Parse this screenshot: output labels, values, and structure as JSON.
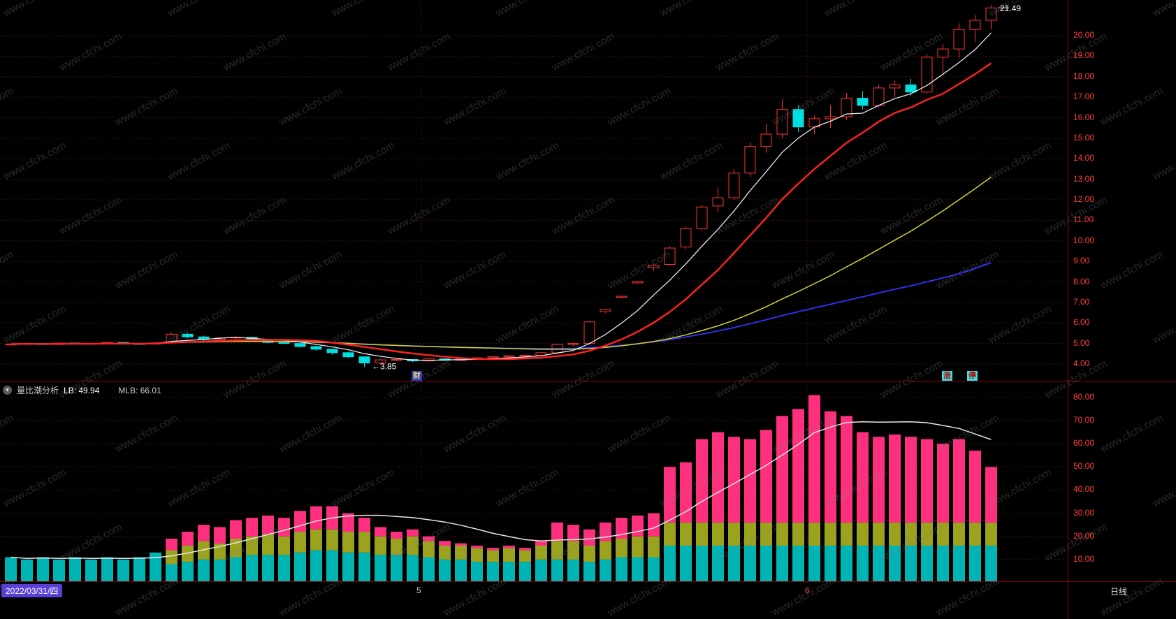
{
  "watermark": "www.cfchi.com",
  "colors": {
    "background": "#000000",
    "up": "#ff3434",
    "down": "#00e0e0",
    "grid": "#401010",
    "divider": "#8a0000",
    "axis_text": "#ff3b3b",
    "ma5": "#e8e8e8",
    "ma10": "#ff2222",
    "ma30": "#d4d431",
    "ma60": "#3333ff",
    "bar_cyan": "#00b4b4",
    "bar_olive": "#9aa21e",
    "bar_pink": "#ff2f7f",
    "line_white": "#e6e6e6",
    "badge_report_bg": "#2038d0",
    "badge_report_text": "#ffd24d",
    "badge_limit_bg": "#35e2e2",
    "badge_limit_text": "#cc0000",
    "date_box_bg": "#5a3fd6",
    "month_highlight": "#ff4545"
  },
  "annotations": {
    "high": "21.49",
    "low": "←3.85"
  },
  "badges": {
    "report": "财",
    "limit_up_1": "涨",
    "limit_up_2": "停"
  },
  "indicator": {
    "icon": "▾",
    "title": "量比潮分析",
    "lb": "LB: 49.94",
    "mlb": "MLB: 66.01"
  },
  "status_bar": {
    "date": "2022/03/31/四",
    "month_1": "5",
    "month_2": "6",
    "period": "日线"
  },
  "chart_data": [
    {
      "type": "candlestick",
      "title": "",
      "ylim": [
        3.7,
        21.6
      ],
      "y_ticks": [
        "20.00",
        "19.00",
        "18.00",
        "17.00",
        "16.00",
        "15.00",
        "14.00",
        "13.00",
        "12.00",
        "11.00",
        "10.00",
        "9.00",
        "8.00",
        "7.00",
        "6.00",
        "5.00",
        "4.00"
      ],
      "month_separator_indices": [
        26,
        50
      ],
      "high_annotation": {
        "index": 61,
        "price": 21.49
      },
      "low_annotation": {
        "index": 22,
        "price": 3.85
      },
      "ma_lines": [
        {
          "name": "MA60",
          "period": 60,
          "color": "#3333ff",
          "width": 1.8
        },
        {
          "name": "MA30",
          "period": 30,
          "color": "#d4d431",
          "width": 1.5
        },
        {
          "name": "MA5",
          "period": 5,
          "color": "#e8e8e8",
          "width": 1.3
        },
        {
          "name": "MA10",
          "period": 10,
          "color": "#ff2222",
          "width": 2.4
        }
      ],
      "candles": [
        [
          4.93,
          5.0,
          4.9,
          4.97
        ],
        [
          4.97,
          5.03,
          4.93,
          5.0
        ],
        [
          5.0,
          5.02,
          4.93,
          4.95
        ],
        [
          4.95,
          5.04,
          4.93,
          5.02
        ],
        [
          5.02,
          5.05,
          4.96,
          4.98
        ],
        [
          4.98,
          5.02,
          4.94,
          5.0
        ],
        [
          5.0,
          5.08,
          4.97,
          5.05
        ],
        [
          5.05,
          5.07,
          4.96,
          4.99
        ],
        [
          4.99,
          5.03,
          4.94,
          4.97
        ],
        [
          4.97,
          5.05,
          4.95,
          5.03
        ],
        [
          5.05,
          5.52,
          4.98,
          5.45
        ],
        [
          5.45,
          5.5,
          5.25,
          5.32
        ],
        [
          5.32,
          5.38,
          5.15,
          5.2
        ],
        [
          5.2,
          5.3,
          5.15,
          5.27
        ],
        [
          5.27,
          5.33,
          5.2,
          5.3
        ],
        [
          5.3,
          5.32,
          5.1,
          5.15
        ],
        [
          5.15,
          5.2,
          5.0,
          5.05
        ],
        [
          5.05,
          5.1,
          4.96,
          5.0
        ],
        [
          5.0,
          5.02,
          4.8,
          4.85
        ],
        [
          4.85,
          4.9,
          4.65,
          4.72
        ],
        [
          4.72,
          4.75,
          4.45,
          4.55
        ],
        [
          4.55,
          4.6,
          4.3,
          4.35
        ],
        [
          4.35,
          4.38,
          3.85,
          4.05
        ],
        [
          4.05,
          4.25,
          4.0,
          4.2
        ],
        [
          4.2,
          4.28,
          4.15,
          4.22
        ],
        [
          4.22,
          4.25,
          4.1,
          4.15
        ],
        [
          4.15,
          4.28,
          4.12,
          4.25
        ],
        [
          4.25,
          4.27,
          4.14,
          4.18
        ],
        [
          4.18,
          4.28,
          4.15,
          4.25
        ],
        [
          4.25,
          4.33,
          4.2,
          4.3
        ],
        [
          4.3,
          4.38,
          4.25,
          4.35
        ],
        [
          4.35,
          4.43,
          4.3,
          4.4
        ],
        [
          4.4,
          4.45,
          4.33,
          4.42
        ],
        [
          4.42,
          4.58,
          4.38,
          4.55
        ],
        [
          4.55,
          4.98,
          4.5,
          4.95
        ],
        [
          4.95,
          5.05,
          4.88,
          5.0
        ],
        [
          5.0,
          6.1,
          4.95,
          6.05
        ],
        [
          6.55,
          6.68,
          6.5,
          6.65
        ],
        [
          7.25,
          7.32,
          7.2,
          7.3
        ],
        [
          7.95,
          8.05,
          7.9,
          8.02
        ],
        [
          8.7,
          8.85,
          8.55,
          8.8
        ],
        [
          8.85,
          9.72,
          8.8,
          9.65
        ],
        [
          9.7,
          10.7,
          9.6,
          10.6
        ],
        [
          10.6,
          11.75,
          10.5,
          11.65
        ],
        [
          11.7,
          12.6,
          11.4,
          12.1
        ],
        [
          12.1,
          13.5,
          12.0,
          13.3
        ],
        [
          13.3,
          14.8,
          13.1,
          14.6
        ],
        [
          14.6,
          15.7,
          14.3,
          15.2
        ],
        [
          15.2,
          16.9,
          15.0,
          16.4
        ],
        [
          16.4,
          16.6,
          15.3,
          15.55
        ],
        [
          15.55,
          16.1,
          15.2,
          15.95
        ],
        [
          15.95,
          16.6,
          15.5,
          16.05
        ],
        [
          16.05,
          17.2,
          15.9,
          16.95
        ],
        [
          16.95,
          17.3,
          16.4,
          16.6
        ],
        [
          16.6,
          17.6,
          16.5,
          17.45
        ],
        [
          17.45,
          17.8,
          17.0,
          17.6
        ],
        [
          17.6,
          17.9,
          17.05,
          17.25
        ],
        [
          17.25,
          19.1,
          17.2,
          18.95
        ],
        [
          18.95,
          19.6,
          18.1,
          19.35
        ],
        [
          19.35,
          20.6,
          18.9,
          20.3
        ],
        [
          20.3,
          21.0,
          19.7,
          20.75
        ],
        [
          20.75,
          21.49,
          20.3,
          21.35
        ]
      ]
    },
    {
      "type": "stacked-bar",
      "title": "量比潮分析",
      "ylim": [
        0,
        85
      ],
      "y_ticks": [
        "80.00",
        "70.00",
        "60.00",
        "50.00",
        "40.00",
        "30.00",
        "20.00",
        "10.00"
      ],
      "lb": 49.94,
      "mlb": 66.01,
      "line": {
        "name": "MLB",
        "period": 10,
        "color": "#e6e6e6"
      },
      "series": [
        {
          "name": "short",
          "color": "#00b4b4",
          "values": [
            11,
            10,
            11,
            10,
            11,
            10,
            11,
            10,
            11,
            13,
            8,
            9,
            10,
            10,
            11,
            12,
            12,
            12,
            13,
            14,
            14,
            13,
            13,
            12,
            12,
            12,
            11,
            10,
            10,
            9,
            9,
            9,
            9,
            10,
            10,
            10,
            9,
            10,
            11,
            11,
            11,
            16,
            16,
            16,
            16,
            16,
            16,
            16,
            16,
            16,
            16,
            16,
            16,
            16,
            16,
            16,
            16,
            16,
            16,
            16,
            16,
            16
          ]
        },
        {
          "name": "mid",
          "color": "#9aa21e",
          "values": [
            0,
            0,
            0,
            0,
            0,
            0,
            0,
            0,
            0,
            0,
            6,
            7,
            8,
            7,
            8,
            8,
            9,
            8,
            9,
            9,
            9,
            9,
            9,
            8,
            7,
            8,
            7,
            6,
            6,
            6,
            5,
            6,
            5,
            6,
            8,
            8,
            7,
            8,
            8,
            9,
            9,
            10,
            10,
            10,
            10,
            10,
            10,
            10,
            10,
            10,
            10,
            10,
            10,
            10,
            10,
            10,
            10,
            10,
            10,
            10,
            10,
            10
          ]
        },
        {
          "name": "long",
          "color": "#ff2f7f",
          "values": [
            0,
            0,
            0,
            0,
            0,
            0,
            0,
            0,
            0,
            0,
            5,
            6,
            7,
            7,
            8,
            8,
            8,
            8,
            9,
            10,
            10,
            8,
            6,
            4,
            3,
            3,
            2,
            2,
            1,
            1,
            1,
            1,
            1,
            2,
            8,
            7,
            7,
            8,
            9,
            9,
            10,
            24,
            26,
            36,
            39,
            37,
            36,
            40,
            46,
            49,
            55,
            48,
            46,
            39,
            37,
            38,
            37,
            36,
            34,
            36,
            31,
            23.94
          ]
        }
      ]
    }
  ]
}
